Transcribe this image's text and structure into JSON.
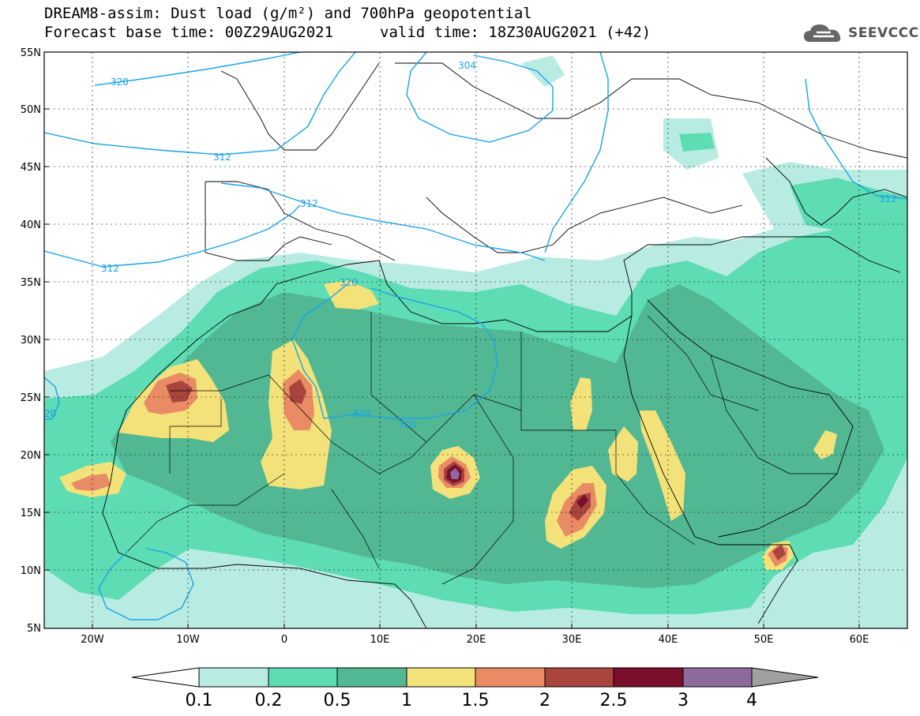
{
  "header": {
    "title_line1": "DREAM8-assim: Dust load (g/m²) and 700hPa geopotential",
    "title_line2_left": "Forecast base time: 00Z29AUG2021",
    "title_line2_right": "valid time: 18Z30AUG2021 (+42)"
  },
  "logo": {
    "text": "SEEVCCC",
    "icon": "cloud-icon"
  },
  "axes": {
    "lat_labels": [
      "55N",
      "50N",
      "45N",
      "40N",
      "35N",
      "30N",
      "25N",
      "20N",
      "15N",
      "10N",
      "5N"
    ],
    "lon_labels": [
      "20W",
      "10W",
      "0",
      "10E",
      "20E",
      "30E",
      "40E",
      "50E",
      "60E"
    ]
  },
  "contour_labels": [
    "320",
    "304",
    "312",
    "312",
    "312",
    "312",
    "320",
    "320",
    "320",
    "20",
    "312"
  ],
  "colorbar": {
    "levels": [
      "0.1",
      "0.2",
      "0.5",
      "1",
      "1.5",
      "2",
      "2.5",
      "3",
      "4"
    ],
    "colors": [
      "#ffffff",
      "#b8ece3",
      "#5edcb4",
      "#52b893",
      "#f3e27a",
      "#e98b64",
      "#a8453d",
      "#7a0f2c",
      "#8c6a9c",
      "#a0a0a0"
    ]
  },
  "chart_data": {
    "type": "heatmap",
    "variable": "Dust load (g/m²)",
    "overlay": "700hPa geopotential contours",
    "xlim": [
      "25W",
      "65E"
    ],
    "ylim": [
      "5N",
      "55N"
    ],
    "colors": {
      "shade_01": "#b8ece3",
      "shade_02": "#5edcb4",
      "shade_05": "#52b893",
      "shade_1": "#f3e27a",
      "shade_15": "#e98b64",
      "shade_2": "#a8453d",
      "shade_25": "#7a0f2c",
      "shade_3": "#8c6a9c",
      "contour": "#1aa3e8"
    }
  }
}
